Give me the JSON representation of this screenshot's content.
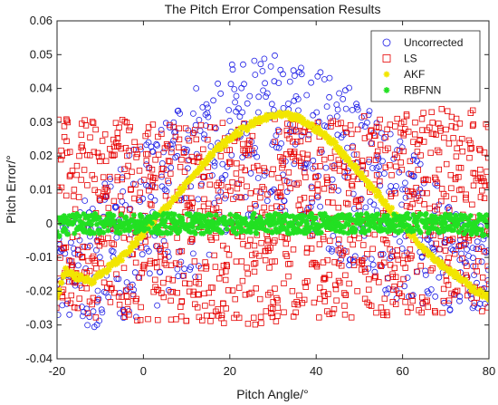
{
  "chart_data": {
    "type": "scatter",
    "title": "The Pitch Error Compensation Results",
    "xlabel": "Pitch Angle/°",
    "ylabel": "Pitch Error/°",
    "xlim": [
      -20,
      80
    ],
    "ylim": [
      -0.04,
      0.06
    ],
    "xticks": [
      -20,
      0,
      20,
      40,
      60,
      80
    ],
    "yticks": [
      -0.04,
      -0.03,
      -0.02,
      -0.01,
      0,
      0.01,
      0.02,
      0.03,
      0.04,
      0.05,
      0.06
    ],
    "ytick_labels": [
      "-0.04",
      "-0.03",
      "-0.02",
      "-0.01",
      "0",
      "0.01",
      "0.02",
      "0.03",
      "0.04",
      "0.05",
      "0.06"
    ],
    "grid": false,
    "legend_position": "top-right",
    "series": [
      {
        "name": "Uncorrected",
        "marker": "circle",
        "color": "#1f1fe6",
        "x": [
          -20,
          -15,
          -10,
          -5,
          0,
          5,
          10,
          15,
          20,
          25,
          30,
          35,
          40,
          45,
          50,
          55,
          60,
          65,
          70,
          75,
          80
        ],
        "y_upper": [
          0.0,
          0.005,
          0.011,
          0.018,
          0.025,
          0.032,
          0.038,
          0.043,
          0.047,
          0.049,
          0.05,
          0.049,
          0.047,
          0.044,
          0.039,
          0.033,
          0.025,
          0.017,
          0.009,
          0.002,
          -0.003
        ],
        "y_lower": [
          -0.027,
          -0.03,
          -0.031,
          -0.03,
          -0.027,
          -0.023,
          -0.018,
          -0.012,
          -0.006,
          -0.001,
          0.002,
          0.0,
          -0.004,
          -0.01,
          -0.015,
          -0.02,
          -0.023,
          -0.025,
          -0.026,
          -0.026,
          -0.024
        ]
      },
      {
        "name": "LS",
        "marker": "square",
        "color": "#e60000",
        "x": [
          -20,
          -15,
          -10,
          -5,
          0,
          5,
          10,
          15,
          20,
          25,
          30,
          35,
          40,
          45,
          50,
          55,
          60,
          65,
          70,
          75,
          80
        ],
        "y_upper": [
          0.032,
          0.032,
          0.031,
          0.031,
          0.03,
          0.03,
          0.03,
          0.03,
          0.03,
          0.03,
          0.031,
          0.031,
          0.031,
          0.032,
          0.032,
          0.033,
          0.033,
          0.034,
          0.034,
          0.035,
          0.035
        ],
        "y_lower": [
          -0.026,
          -0.027,
          -0.028,
          -0.028,
          -0.029,
          -0.029,
          -0.03,
          -0.03,
          -0.03,
          -0.03,
          -0.03,
          -0.029,
          -0.029,
          -0.028,
          -0.028,
          -0.028,
          -0.027,
          -0.027,
          -0.027,
          -0.026,
          -0.026
        ]
      },
      {
        "name": "AKF",
        "marker": "star",
        "color": "#f2e600",
        "x": [
          -20,
          -18,
          -15,
          -12,
          -10,
          -7,
          -5,
          -2,
          0,
          3,
          6,
          10,
          14,
          18,
          22,
          26,
          30,
          33,
          36,
          40,
          44,
          48,
          52,
          56,
          60,
          64,
          68,
          72,
          76,
          80
        ],
        "y": [
          -0.022,
          -0.014,
          -0.016,
          -0.017,
          -0.015,
          -0.012,
          -0.01,
          -0.006,
          -0.003,
          0.002,
          0.006,
          0.012,
          0.018,
          0.023,
          0.027,
          0.03,
          0.032,
          0.032,
          0.031,
          0.028,
          0.024,
          0.018,
          0.012,
          0.006,
          0.0,
          -0.006,
          -0.011,
          -0.015,
          -0.019,
          -0.022
        ]
      },
      {
        "name": "RBFNN",
        "marker": "star",
        "color": "#22e022",
        "x": [
          -20,
          -15,
          -10,
          -5,
          0,
          5,
          10,
          15,
          20,
          25,
          30,
          35,
          40,
          45,
          50,
          55,
          60,
          65,
          70,
          75,
          80
        ],
        "y_upper": [
          0.003,
          0.003,
          0.003,
          0.003,
          0.003,
          0.003,
          0.003,
          0.003,
          0.003,
          0.003,
          0.003,
          0.003,
          0.003,
          0.003,
          0.003,
          0.003,
          0.003,
          0.003,
          0.003,
          0.003,
          0.003
        ],
        "y_lower": [
          -0.004,
          -0.003,
          -0.003,
          -0.003,
          -0.003,
          -0.003,
          -0.003,
          -0.003,
          -0.003,
          -0.003,
          -0.003,
          -0.003,
          -0.003,
          -0.003,
          -0.003,
          -0.003,
          -0.003,
          -0.003,
          -0.003,
          -0.003,
          -0.004
        ]
      }
    ]
  }
}
